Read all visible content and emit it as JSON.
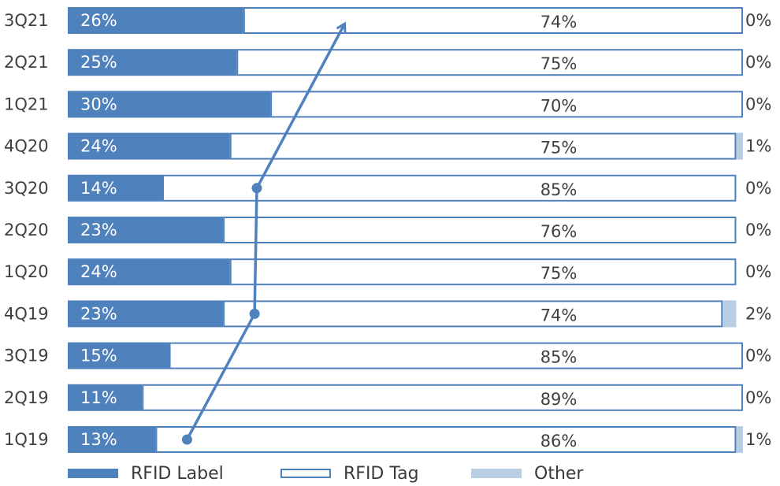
{
  "chart_data": {
    "type": "bar",
    "stacked": true,
    "orientation": "horizontal",
    "percent": true,
    "categories": [
      "3Q21",
      "2Q21",
      "1Q21",
      "4Q20",
      "3Q20",
      "2Q20",
      "1Q20",
      "4Q19",
      "3Q19",
      "2Q19",
      "1Q19"
    ],
    "series": [
      {
        "name": "RFID Label",
        "values": [
          26,
          25,
          30,
          24,
          14,
          23,
          24,
          23,
          15,
          11,
          13
        ],
        "color": "#4f81bd"
      },
      {
        "name": "RFID Tag",
        "values": [
          74,
          75,
          70,
          75,
          85,
          76,
          75,
          74,
          85,
          89,
          86
        ],
        "color": "#ffffff",
        "stroke": "#4f81bd"
      },
      {
        "name": "Other",
        "values": [
          0,
          0,
          0,
          1,
          0,
          0,
          0,
          2,
          0,
          0,
          1
        ],
        "color": "#b9cde5"
      }
    ],
    "data_label_suffix": "%",
    "trend_arrow": {
      "from_category": "1Q19",
      "via": [
        "4Q19",
        "3Q20"
      ],
      "to_category": "3Q21",
      "color": "#4f81bd"
    },
    "legend_position": "bottom",
    "grid": false,
    "xlim": [
      0,
      100
    ]
  },
  "legend": {
    "items": [
      "RFID Label",
      "RFID Tag",
      "Other"
    ]
  }
}
